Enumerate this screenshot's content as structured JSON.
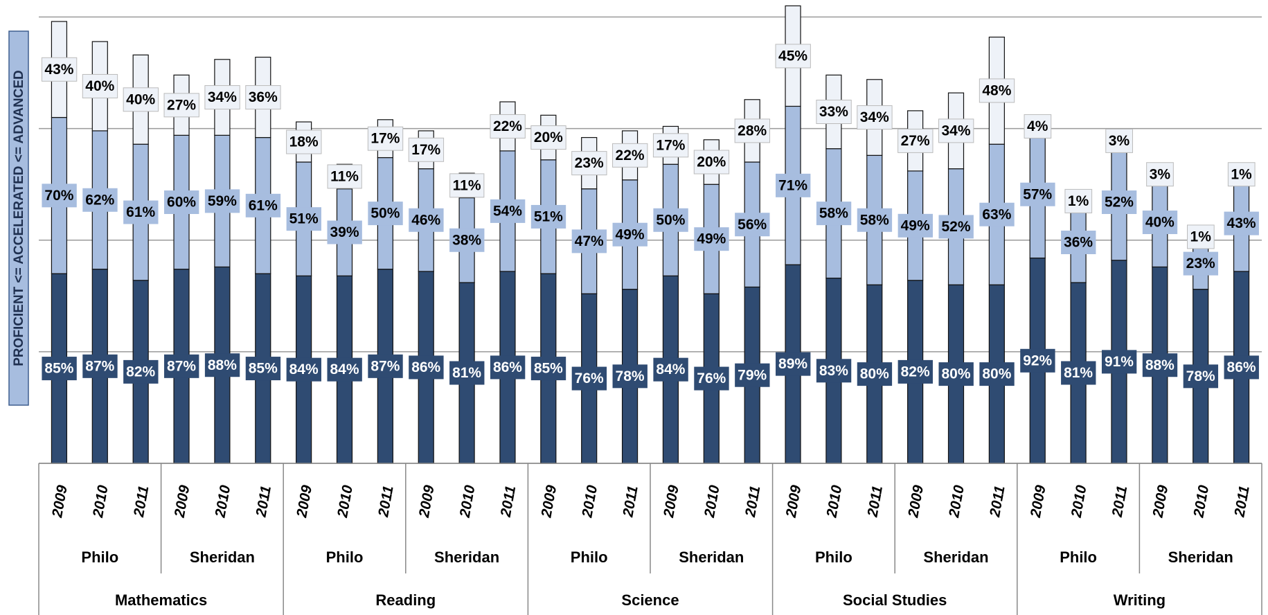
{
  "chart_data": {
    "type": "bar",
    "stacked": true,
    "y_label": "PROFICIENT <= ACCELERATED <= ADVANCED",
    "categories": [
      "2009",
      "2010",
      "2011",
      "2009",
      "2010",
      "2011",
      "2009",
      "2010",
      "2011",
      "2009",
      "2010",
      "2011",
      "2009",
      "2010",
      "2011",
      "2009",
      "2010",
      "2011",
      "2009",
      "2010",
      "2011",
      "2009",
      "2010",
      "2011",
      "2009",
      "2010",
      "2011",
      "2009",
      "2010",
      "2011"
    ],
    "schools": [
      "Philo",
      "Sheridan",
      "Philo",
      "Sheridan",
      "Philo",
      "Sheridan",
      "Philo",
      "Sheridan",
      "Philo",
      "Sheridan"
    ],
    "subjects": [
      "Mathematics",
      "Reading",
      "Science",
      "Social Studies",
      "Writing"
    ],
    "series": [
      {
        "color": "#2f4b72",
        "label_color": "#ffffff",
        "values": [
          85,
          87,
          82,
          87,
          88,
          85,
          84,
          84,
          87,
          86,
          81,
          86,
          85,
          76,
          78,
          84,
          76,
          79,
          89,
          83,
          80,
          82,
          80,
          80,
          92,
          81,
          91,
          88,
          78,
          86
        ],
        "value_labels": [
          "85%",
          "87%",
          "82%",
          "87%",
          "88%",
          "85%",
          "84%",
          "84%",
          "87%",
          "86%",
          "81%",
          "86%",
          "85%",
          "76%",
          "78%",
          "84%",
          "76%",
          "79%",
          "89%",
          "83%",
          "80%",
          "82%",
          "80%",
          "80%",
          "92%",
          "81%",
          "91%",
          "88%",
          "78%",
          "86%"
        ]
      },
      {
        "color": "#a7bddf",
        "label_color": "#000000",
        "values": [
          70,
          62,
          61,
          60,
          59,
          61,
          51,
          39,
          50,
          46,
          38,
          54,
          51,
          47,
          49,
          50,
          49,
          56,
          71,
          58,
          58,
          49,
          52,
          63,
          57,
          36,
          52,
          40,
          23,
          43
        ],
        "value_labels": [
          "70%",
          "62%",
          "61%",
          "60%",
          "59%",
          "61%",
          "51%",
          "39%",
          "50%",
          "46%",
          "38%",
          "54%",
          "51%",
          "47%",
          "49%",
          "50%",
          "49%",
          "56%",
          "71%",
          "58%",
          "58%",
          "49%",
          "52%",
          "63%",
          "57%",
          "36%",
          "52%",
          "40%",
          "23%",
          "43%"
        ]
      },
      {
        "color": "#eef2f8",
        "label_color": "#000000",
        "values": [
          43,
          40,
          40,
          27,
          34,
          36,
          18,
          11,
          17,
          17,
          11,
          22,
          20,
          23,
          22,
          17,
          20,
          28,
          45,
          33,
          34,
          27,
          34,
          48,
          4,
          1,
          3,
          3,
          1,
          1
        ],
        "value_labels": [
          "43%",
          "40%",
          "40%",
          "27%",
          "34%",
          "36%",
          "18%",
          "11%",
          "17%",
          "17%",
          "11%",
          "22%",
          "20%",
          "23%",
          "22%",
          "17%",
          "20%",
          "28%",
          "45%",
          "33%",
          "34%",
          "27%",
          "34%",
          "48%",
          "4%",
          "1%",
          "3%",
          "3%",
          "1%",
          "1%"
        ]
      }
    ],
    "ylim": [
      0,
      207
    ],
    "yticks": [
      0,
      50,
      100,
      150,
      200
    ],
    "grid": true
  }
}
